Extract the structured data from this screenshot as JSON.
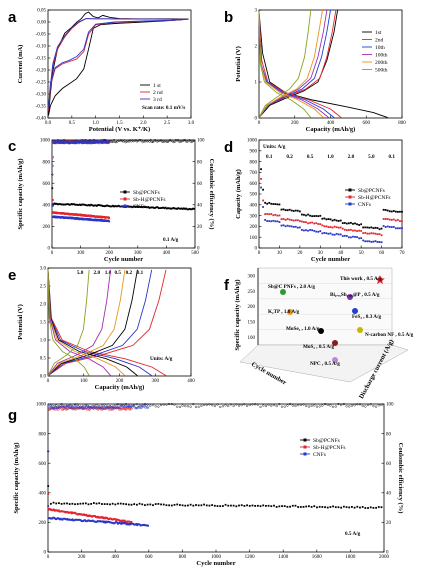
{
  "colors": {
    "sb": "#000000",
    "sbh": "#e3262d",
    "cnf": "#2a35c8",
    "c10": "#1f3fd6",
    "c100": "#a52eb3",
    "c200": "#e8951c",
    "c500": "#8aa322"
  },
  "chart_data": [
    {
      "panel": "a",
      "type": "line",
      "xlabel": "Potential (V vs. K⁺/K)",
      "ylabel": "Current (mA)",
      "xlim": [
        0,
        3
      ],
      "ylim": [
        -0.4,
        0.04
      ],
      "xticks": [
        "0.0",
        "0.5",
        "1.0",
        "1.5",
        "2.0",
        "2.5",
        "3.0"
      ],
      "yticks": [
        "-0.40",
        "-0.35",
        "-0.30",
        "-0.25",
        "-0.20",
        "-0.15",
        "-0.10",
        "-0.05",
        "0.00",
        "0.05"
      ],
      "annotation": "Scan rate: 0.1 mV/s",
      "series": [
        {
          "name": "1 st",
          "color": "#000000",
          "x": [
            0.01,
            0.05,
            0.1,
            0.2,
            0.35,
            0.5,
            0.6,
            0.7,
            0.78,
            0.85,
            0.95,
            1.05,
            1.15,
            1.3,
            1.5,
            1.8,
            2.2,
            2.6,
            2.95,
            2.8,
            2.4,
            1.9,
            1.4,
            1.1,
            0.95,
            0.85,
            0.75,
            0.6,
            0.45,
            0.3,
            0.15,
            0.05,
            0.01
          ],
          "y": [
            -0.39,
            -0.3,
            -0.21,
            -0.12,
            -0.055,
            -0.03,
            -0.01,
            0.005,
            0.025,
            0.032,
            0.013,
            0.008,
            0.018,
            0.01,
            0.005,
            0.004,
            0.004,
            0.004,
            0.003,
            0.0,
            -0.005,
            -0.01,
            -0.015,
            -0.02,
            -0.035,
            -0.12,
            -0.2,
            -0.24,
            -0.26,
            -0.28,
            -0.31,
            -0.35,
            -0.39
          ]
        },
        {
          "name": "2 nd",
          "color": "#e3262d",
          "x": [
            0.01,
            0.05,
            0.1,
            0.2,
            0.35,
            0.5,
            0.65,
            0.8,
            0.95,
            1.2,
            1.6,
            2.2,
            2.9,
            2.6,
            2.0,
            1.4,
            1.0,
            0.85,
            0.75,
            0.6,
            0.45,
            0.3,
            0.15,
            0.05,
            0.01
          ],
          "y": [
            -0.37,
            -0.28,
            -0.19,
            -0.12,
            -0.07,
            -0.035,
            -0.01,
            0.005,
            0.004,
            0.004,
            0.004,
            0.003,
            0.002,
            -0.002,
            -0.006,
            -0.01,
            -0.02,
            -0.06,
            -0.13,
            -0.16,
            -0.17,
            -0.18,
            -0.2,
            -0.27,
            -0.37
          ]
        },
        {
          "name": "3 rd",
          "color": "#2a35c8",
          "x": [
            0.01,
            0.05,
            0.1,
            0.2,
            0.35,
            0.5,
            0.65,
            0.8,
            0.95,
            1.2,
            1.6,
            2.2,
            2.9,
            2.6,
            2.0,
            1.4,
            1.0,
            0.85,
            0.75,
            0.6,
            0.45,
            0.3,
            0.15,
            0.05,
            0.01
          ],
          "y": [
            -0.36,
            -0.27,
            -0.18,
            -0.11,
            -0.065,
            -0.032,
            -0.008,
            0.005,
            0.004,
            0.004,
            0.003,
            0.003,
            0.002,
            -0.002,
            -0.005,
            -0.009,
            -0.018,
            -0.05,
            -0.12,
            -0.15,
            -0.165,
            -0.175,
            -0.195,
            -0.26,
            -0.36
          ]
        }
      ]
    },
    {
      "panel": "b",
      "type": "line",
      "xlabel": "Capacity (mAh/g)",
      "ylabel": "Potential (V)",
      "xlim": [
        0,
        800
      ],
      "ylim": [
        0,
        3
      ],
      "xticks": [
        "0",
        "200",
        "400",
        "600",
        "800"
      ],
      "yticks": [
        "0",
        "1",
        "2",
        "3"
      ],
      "series": [
        {
          "name": "1st",
          "color": "#000000",
          "dis": [
            [
              0,
              2.95
            ],
            [
              20,
              1.8
            ],
            [
              60,
              1.0
            ],
            [
              150,
              0.7
            ],
            [
              300,
              0.5
            ],
            [
              500,
              0.3
            ],
            [
              640,
              0.15
            ],
            [
              720,
              0.01
            ]
          ],
          "chg": [
            [
              0,
              0.01
            ],
            [
              60,
              0.35
            ],
            [
              150,
              0.55
            ],
            [
              250,
              0.75
            ],
            [
              330,
              1.0
            ],
            [
              380,
              1.6
            ],
            [
              420,
              2.4
            ],
            [
              440,
              3.0
            ]
          ]
        },
        {
          "name": "2nd",
          "color": "#e3262d",
          "dis": [
            [
              0,
              2.95
            ],
            [
              15,
              1.6
            ],
            [
              50,
              1.0
            ],
            [
              150,
              0.7
            ],
            [
              280,
              0.5
            ],
            [
              400,
              0.25
            ],
            [
              460,
              0.01
            ]
          ],
          "chg": [
            [
              0,
              0.01
            ],
            [
              50,
              0.35
            ],
            [
              150,
              0.58
            ],
            [
              260,
              0.8
            ],
            [
              340,
              1.1
            ],
            [
              380,
              1.7
            ],
            [
              410,
              2.4
            ],
            [
              430,
              3.0
            ]
          ]
        },
        {
          "name": "10th",
          "color": "#1f3fd6",
          "dis": [
            [
              0,
              2.95
            ],
            [
              12,
              1.5
            ],
            [
              45,
              1.0
            ],
            [
              140,
              0.7
            ],
            [
              260,
              0.5
            ],
            [
              360,
              0.25
            ],
            [
              420,
              0.01
            ]
          ],
          "chg": [
            [
              0,
              0.01
            ],
            [
              50,
              0.35
            ],
            [
              140,
              0.58
            ],
            [
              240,
              0.8
            ],
            [
              310,
              1.1
            ],
            [
              350,
              1.7
            ],
            [
              380,
              2.4
            ],
            [
              400,
              3.0
            ]
          ]
        },
        {
          "name": "100th",
          "color": "#a52eb3",
          "dis": [
            [
              0,
              2.95
            ],
            [
              10,
              1.5
            ],
            [
              40,
              1.0
            ],
            [
              130,
              0.7
            ],
            [
              240,
              0.5
            ],
            [
              330,
              0.25
            ],
            [
              390,
              0.01
            ]
          ],
          "chg": [
            [
              0,
              0.01
            ],
            [
              45,
              0.35
            ],
            [
              130,
              0.58
            ],
            [
              220,
              0.8
            ],
            [
              290,
              1.1
            ],
            [
              330,
              1.7
            ],
            [
              360,
              2.4
            ],
            [
              380,
              3.0
            ]
          ]
        },
        {
          "name": "200th",
          "color": "#e8951c",
          "dis": [
            [
              0,
              2.95
            ],
            [
              10,
              1.5
            ],
            [
              38,
              1.0
            ],
            [
              120,
              0.7
            ],
            [
              220,
              0.5
            ],
            [
              310,
              0.25
            ],
            [
              360,
              0.01
            ]
          ],
          "chg": [
            [
              0,
              0.01
            ],
            [
              45,
              0.35
            ],
            [
              120,
              0.58
            ],
            [
              210,
              0.8
            ],
            [
              270,
              1.1
            ],
            [
              310,
              1.7
            ],
            [
              335,
              2.4
            ],
            [
              355,
              3.0
            ]
          ]
        },
        {
          "name": "500th",
          "color": "#8aa322",
          "dis": [
            [
              0,
              2.95
            ],
            [
              8,
              1.5
            ],
            [
              30,
              1.0
            ],
            [
              100,
              0.7
            ],
            [
              180,
              0.5
            ],
            [
              250,
              0.25
            ],
            [
              290,
              0.01
            ]
          ],
          "chg": [
            [
              0,
              0.01
            ],
            [
              35,
              0.35
            ],
            [
              100,
              0.58
            ],
            [
              170,
              0.8
            ],
            [
              220,
              1.1
            ],
            [
              255,
              1.7
            ],
            [
              275,
              2.4
            ],
            [
              290,
              3.0
            ]
          ]
        }
      ]
    },
    {
      "panel": "c",
      "type": "scatter",
      "xlabel": "Cycle number",
      "ylabel": "Specific capacity (mAh/g)",
      "y2label": "Coulombic efficiency (%)",
      "xlim": [
        0,
        500
      ],
      "ylim": [
        0,
        1000
      ],
      "y2lim": [
        0,
        100
      ],
      "xticks": [
        "0",
        "100",
        "200",
        "300",
        "400",
        "500"
      ],
      "yticks": [
        "0",
        "200",
        "400",
        "600",
        "800",
        "1000"
      ],
      "y2ticks": [
        "0",
        "20",
        "40",
        "60",
        "80",
        "100"
      ],
      "annotation": "0.1 A/g",
      "series": [
        {
          "name": "Sb@PCNFs",
          "color": "#000000",
          "n": 500,
          "cap_start": 410,
          "cap_end": 360,
          "ce": 99
        },
        {
          "name": "Sb-H@PCNFs",
          "color": "#e3262d",
          "n": 200,
          "cap_start": 330,
          "cap_end": 280,
          "ce": 98
        },
        {
          "name": "CNFs",
          "color": "#2a35c8",
          "n": 200,
          "cap_start": 290,
          "cap_end": 250,
          "ce": 98
        }
      ]
    },
    {
      "panel": "d",
      "type": "scatter",
      "xlabel": "Cycle number",
      "ylabel": "Capacity (mAh/g)",
      "xlim": [
        0,
        70
      ],
      "ylim": [
        0,
        1000
      ],
      "xticks": [
        "0",
        "10",
        "20",
        "30",
        "40",
        "50",
        "60",
        "70"
      ],
      "yticks": [
        "0",
        "100",
        "200",
        "300",
        "400",
        "500",
        "600",
        "700",
        "800",
        "900",
        "1000"
      ],
      "units": "Units: A/g",
      "rates": [
        "0.1",
        "0.2",
        "0.5",
        "1.0",
        "2.0",
        "5.0",
        "0.1"
      ],
      "segments_x": [
        [
          0,
          10
        ],
        [
          10,
          20
        ],
        [
          20,
          30
        ],
        [
          30,
          40
        ],
        [
          40,
          50
        ],
        [
          50,
          60
        ],
        [
          60,
          70
        ]
      ],
      "series": [
        {
          "name": "Sb@PCNFs",
          "color": "#000000",
          "first": 730,
          "levels": [
            420,
            360,
            310,
            270,
            235,
            195,
            350
          ]
        },
        {
          "name": "Sb-H@PCNFs",
          "color": "#e3262d",
          "first": 640,
          "levels": [
            320,
            270,
            240,
            205,
            175,
            140,
            270
          ]
        },
        {
          "name": "CNFs",
          "color": "#2a35c8",
          "first": 560,
          "levels": [
            260,
            210,
            170,
            140,
            110,
            70,
            200
          ]
        }
      ]
    },
    {
      "panel": "e",
      "type": "line",
      "xlabel": "Capacity (mAh/g)",
      "ylabel": "Potential (V)",
      "xlim": [
        0,
        400
      ],
      "ylim": [
        0,
        3
      ],
      "xticks": [
        "0",
        "100",
        "200",
        "300",
        "400"
      ],
      "yticks": [
        "0.0",
        "0.5",
        "1.0",
        "1.5",
        "2.0",
        "2.5",
        "3.0"
      ],
      "units": "Units: A/g",
      "series": [
        {
          "name": "0.1",
          "color": "#e3262d",
          "cap": 330
        },
        {
          "name": "0.2",
          "color": "#2a35c8",
          "cap": 290
        },
        {
          "name": "0.5",
          "color": "#000000",
          "cap": 250
        },
        {
          "name": "1.0",
          "color": "#e8951c",
          "cap": 215
        },
        {
          "name": "2.0",
          "color": "#a52eb3",
          "cap": 175
        },
        {
          "name": "5.0",
          "color": "#8aa322",
          "cap": 115
        }
      ]
    },
    {
      "panel": "f",
      "type": "scatter",
      "xlabel": "Cycle number",
      "ylabel": "Specific capacity (mAh/g)",
      "zlabel": "Discharge current (A/g)",
      "yticks": [
        "100",
        "150",
        "200",
        "250",
        "300"
      ],
      "points": [
        {
          "label": "This work , 0.5 A/g",
          "color": "#e3262d",
          "star": true
        },
        {
          "label": "Sb@C PNFs , 2.0 A/g",
          "color": "#2e9b2e"
        },
        {
          "label": "Bi₀.₇₅Sb₀.₂₅@P , 0.5 A/g",
          "color": "#7b2fae"
        },
        {
          "label": "K₂TP , 1.0 A/g",
          "color": "#e8951c"
        },
        {
          "label": "FeS₂ , 0.3 A/g",
          "color": "#1f3fd6"
        },
        {
          "label": "MoSe₂ , 1.0 A/g",
          "color": "#000000"
        },
        {
          "label": "N-carbon NF , 0.5 A/g",
          "color": "#c7b600"
        },
        {
          "label": "MoS₂ , 0.5 A/g",
          "color": "#8b1c1c"
        },
        {
          "label": "NPC , 0.5 A/g",
          "color": "#b889d6"
        }
      ]
    },
    {
      "panel": "g",
      "type": "scatter",
      "xlabel": "Cycle number",
      "ylabel": "Specific capacity (mAh/g)",
      "y2label": "Coulombic efficiency (%)",
      "xlim": [
        0,
        2000
      ],
      "ylim": [
        0,
        1000
      ],
      "y2lim": [
        0,
        100
      ],
      "xticks": [
        "0",
        "200",
        "400",
        "600",
        "800",
        "1000",
        "1200",
        "1400",
        "1600",
        "1800",
        "2000"
      ],
      "yticks": [
        "0",
        "200",
        "400",
        "600",
        "800",
        "1000"
      ],
      "y2ticks": [
        "0",
        "20",
        "40",
        "60",
        "80",
        "100"
      ],
      "annotation": "0.5 A/g",
      "series": [
        {
          "name": "Sb@PCNFs",
          "color": "#000000",
          "n": 2000,
          "cap_start": 330,
          "cap_end": 300,
          "ce": 99
        },
        {
          "name": "Sb-H@PCNFs",
          "color": "#e3262d",
          "n": 500,
          "cap_start": 290,
          "cap_end": 200,
          "ce": 97
        },
        {
          "name": "CNFs",
          "color": "#2a35c8",
          "n": 600,
          "cap_start": 230,
          "cap_end": 180,
          "ce": 98
        }
      ]
    }
  ]
}
